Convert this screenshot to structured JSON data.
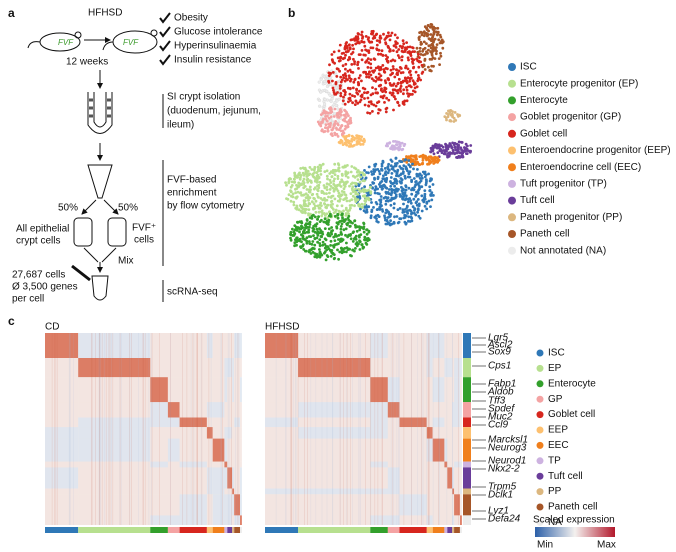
{
  "panel_a": {
    "label": "a",
    "diet": "HFHSD",
    "mouse_label": "FVF",
    "duration": "12 weeks",
    "phenotypes": [
      "Obesity",
      "Glucose intolerance",
      "Hyperinsulinaemia",
      "Insulin resistance"
    ],
    "isolation": [
      "SI crypt isolation",
      "(duodenum, jejunum,",
      "ileum)"
    ],
    "enrichment": [
      "FVF-based",
      "enrichment",
      "by flow cytometry"
    ],
    "split": [
      "50%",
      "50%"
    ],
    "left_cells": [
      "All epithelial",
      "crypt cells"
    ],
    "right_cells": [
      "FVF⁺",
      "cells"
    ],
    "mix": "Mix",
    "summary": [
      "27,687 cells",
      "Ø 3,500 genes",
      "per cell"
    ],
    "sequencing": "scRNA-seq"
  },
  "panel_b": {
    "label": "b",
    "legend": [
      {
        "label": "ISC",
        "color": "#2f78b7"
      },
      {
        "label": "Enterocyte progenitor (EP)",
        "color": "#b7e08f"
      },
      {
        "label": "Enterocyte",
        "color": "#33a02c"
      },
      {
        "label": "Goblet progenitor (GP)",
        "color": "#f4a3a3"
      },
      {
        "label": "Goblet cell",
        "color": "#d7261e"
      },
      {
        "label": "Enteroendocrine progenitor (EEP)",
        "color": "#fdc06f"
      },
      {
        "label": "Enteroendocrine cell (EEC)",
        "color": "#f07f1c"
      },
      {
        "label": "Tuft progenitor (TP)",
        "color": "#cdb2e0"
      },
      {
        "label": "Tuft cell",
        "color": "#6a3d9a"
      },
      {
        "label": "Paneth progenitor (PP)",
        "color": "#dcb77f"
      },
      {
        "label": "Paneth cell",
        "color": "#a65628"
      },
      {
        "label": "Not annotated (NA)",
        "color": "#ececec"
      }
    ]
  },
  "panel_c": {
    "label": "c",
    "titles": [
      "CD",
      "HFHSD"
    ],
    "genes": [
      "Lgr5",
      "Ascl2",
      "Sox9",
      "Cps1",
      "Fabp1",
      "Aldob",
      "Tff3",
      "Spdef",
      "Muc2",
      "Ccl9",
      "Marcksl1",
      "Neurog3",
      "Neurod1",
      "Nkx2-2",
      "Trpm5",
      "Dclk1",
      "Lyz1",
      "Defa24"
    ],
    "legend": [
      {
        "label": "ISC",
        "color": "#2f78b7"
      },
      {
        "label": "EP",
        "color": "#b7e08f"
      },
      {
        "label": "Enterocyte",
        "color": "#33a02c"
      },
      {
        "label": "GP",
        "color": "#f4a3a3"
      },
      {
        "label": "Goblet cell",
        "color": "#d7261e"
      },
      {
        "label": "EEP",
        "color": "#fdc06f"
      },
      {
        "label": "EEC",
        "color": "#f07f1c"
      },
      {
        "label": "TP",
        "color": "#cdb2e0"
      },
      {
        "label": "Tuft cell",
        "color": "#6a3d9a"
      },
      {
        "label": "PP",
        "color": "#dcb77f"
      },
      {
        "label": "Paneth cell",
        "color": "#a65628"
      },
      {
        "label": "NA",
        "color": "#ececec"
      }
    ],
    "scale_title": "Scaled expression",
    "scale_min": "Min",
    "scale_max": "Max"
  }
}
